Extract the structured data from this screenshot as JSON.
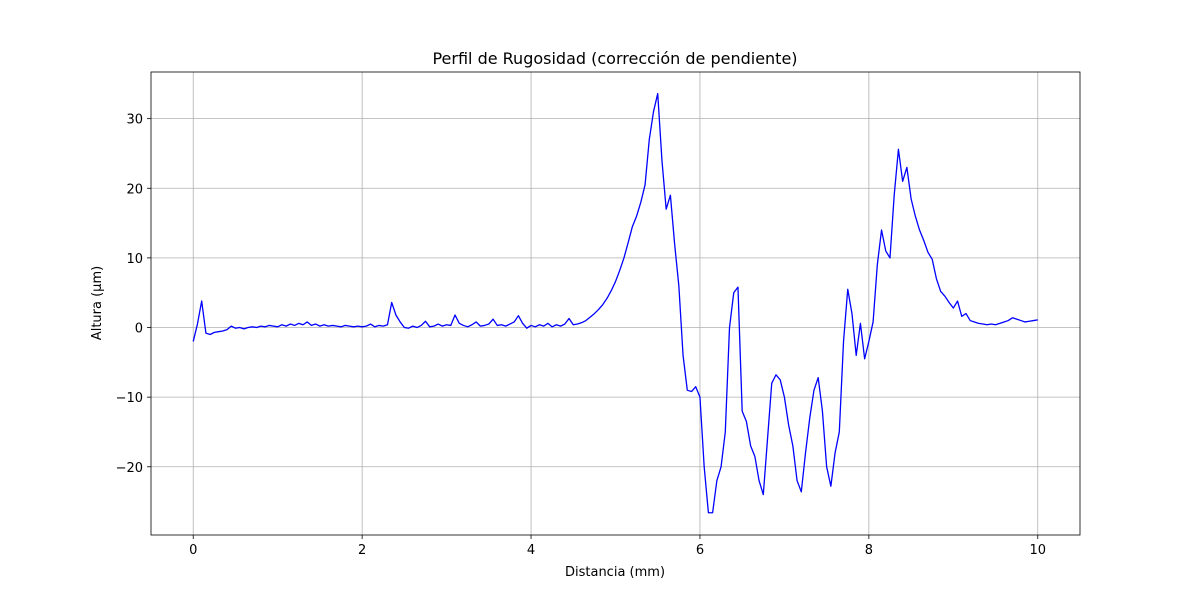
{
  "chart_data": {
    "type": "line",
    "title": "Perfil de Rugosidad (corrección de pendiente)",
    "x_label": "Distancia (mm)",
    "y_label": "Altura (µm)",
    "x": [
      0,
      0.05,
      0.1,
      0.15,
      0.2,
      0.25,
      0.3,
      0.35,
      0.4,
      0.45,
      0.5,
      0.55,
      0.6,
      0.65,
      0.7,
      0.75,
      0.8,
      0.85,
      0.9,
      0.95,
      1,
      1.05,
      1.1,
      1.15,
      1.2,
      1.25,
      1.3,
      1.35,
      1.4,
      1.45,
      1.5,
      1.55,
      1.6,
      1.65,
      1.7,
      1.75,
      1.8,
      1.85,
      1.9,
      1.95,
      2,
      2.05,
      2.1,
      2.15,
      2.2,
      2.25,
      2.3,
      2.35,
      2.4,
      2.45,
      2.5,
      2.55,
      2.6,
      2.65,
      2.7,
      2.75,
      2.8,
      2.85,
      2.9,
      2.95,
      3,
      3.05,
      3.1,
      3.15,
      3.2,
      3.25,
      3.3,
      3.35,
      3.4,
      3.45,
      3.5,
      3.55,
      3.6,
      3.65,
      3.7,
      3.75,
      3.8,
      3.85,
      3.9,
      3.95,
      4,
      4.05,
      4.1,
      4.15,
      4.2,
      4.25,
      4.3,
      4.35,
      4.4,
      4.45,
      4.5,
      4.55,
      4.6,
      4.65,
      4.7,
      4.75,
      4.8,
      4.85,
      4.9,
      4.95,
      5,
      5.05,
      5.1,
      5.15,
      5.2,
      5.25,
      5.3,
      5.35,
      5.4,
      5.45,
      5.5,
      5.55,
      5.6,
      5.65,
      5.7,
      5.75,
      5.8,
      5.85,
      5.9,
      5.95,
      6,
      6.05,
      6.1,
      6.15,
      6.2,
      6.25,
      6.3,
      6.35,
      6.4,
      6.45,
      6.5,
      6.55,
      6.6,
      6.65,
      6.7,
      6.75,
      6.8,
      6.85,
      6.9,
      6.95,
      7,
      7.05,
      7.1,
      7.15,
      7.2,
      7.25,
      7.3,
      7.35,
      7.4,
      7.45,
      7.5,
      7.55,
      7.6,
      7.65,
      7.7,
      7.75,
      7.8,
      7.85,
      7.9,
      7.95,
      8,
      8.05,
      8.1,
      8.15,
      8.2,
      8.25,
      8.3,
      8.35,
      8.4,
      8.45,
      8.5,
      8.55,
      8.6,
      8.65,
      8.7,
      8.75,
      8.8,
      8.85,
      8.9,
      8.95,
      9,
      9.05,
      9.1,
      9.15,
      9.2,
      9.25,
      9.3,
      9.35,
      9.4,
      9.45,
      9.5,
      9.55,
      9.6,
      9.65,
      9.7,
      9.75,
      9.8,
      9.85,
      9.9,
      9.95,
      10
    ],
    "series": [
      {
        "color": "#0000ff",
        "values": [
          -2,
          0.5,
          3.8,
          -0.8,
          -1,
          -0.7,
          -0.6,
          -0.5,
          -0.3,
          0.2,
          -0.1,
          0,
          -0.2,
          0,
          0.1,
          0,
          0.2,
          0.1,
          0.3,
          0.2,
          0.1,
          0.4,
          0.2,
          0.5,
          0.3,
          0.6,
          0.4,
          0.8,
          0.3,
          0.5,
          0.2,
          0.4,
          0.2,
          0.3,
          0.2,
          0.1,
          0.3,
          0.2,
          0.1,
          0.2,
          0.1,
          0.2,
          0.5,
          0.1,
          0.3,
          0.2,
          0.4,
          3.6,
          1.8,
          0.8,
          0,
          -0.1,
          0.2,
          0,
          0.3,
          0.9,
          0.1,
          0.2,
          0.5,
          0.2,
          0.4,
          0.3,
          1.8,
          0.6,
          0.3,
          0.1,
          0.4,
          0.8,
          0.2,
          0.3,
          0.5,
          1.2,
          0.3,
          0.4,
          0.2,
          0.5,
          0.8,
          1.7,
          0.6,
          -0.1,
          0.3,
          0.1,
          0.4,
          0.2,
          0.6,
          0.1,
          0.4,
          0.2,
          0.5,
          1.3,
          0.4,
          0.5,
          0.7,
          1.0,
          1.5,
          2.0,
          2.6,
          3.3,
          4.2,
          5.3,
          6.6,
          8.2,
          10.0,
          12.2,
          14.5,
          16.0,
          18.0,
          20.5,
          27.0,
          31.0,
          33.6,
          24.0,
          17.0,
          19.0,
          12.0,
          6.0,
          -4.0,
          -9.0,
          -9.2,
          -8.5,
          -10.0,
          -20.0,
          -26.6,
          -26.6,
          -22.0,
          -20.0,
          -15.0,
          0.0,
          5.0,
          5.8,
          -12.0,
          -13.5,
          -17.0,
          -18.5,
          -22.0,
          -24.0,
          -16.0,
          -8.0,
          -6.8,
          -7.5,
          -10.0,
          -14.0,
          -17.0,
          -22.0,
          -23.6,
          -18.0,
          -13.0,
          -9.0,
          -7.2,
          -12.0,
          -20.0,
          -22.8,
          -18.0,
          -15.0,
          -2.0,
          5.5,
          2.0,
          -4.0,
          0.6,
          -4.5,
          -2.0,
          0.8,
          9.0,
          14.0,
          11.0,
          10.0,
          19.0,
          25.6,
          21.0,
          23.0,
          18.5,
          16.0,
          14.0,
          12.5,
          10.8,
          9.8,
          7.0,
          5.2,
          4.5,
          3.6,
          2.8,
          3.8,
          1.6,
          2.0,
          1.0,
          0.8,
          0.6,
          0.5,
          0.4,
          0.5,
          0.4,
          0.6,
          0.8,
          1.0,
          1.4,
          1.2,
          1.0,
          0.8,
          0.9,
          1.0,
          1.1
        ]
      }
    ],
    "xlim": [
      -0.5,
      10.5
    ],
    "ylim": [
      -29.8,
      36.7
    ],
    "xticks": [
      0,
      2,
      4,
      6,
      8,
      10
    ],
    "yticks": [
      {
        "value": -20,
        "label": "−20"
      },
      {
        "value": -10,
        "label": "−10"
      },
      0,
      10,
      20,
      30
    ],
    "grid": true
  }
}
